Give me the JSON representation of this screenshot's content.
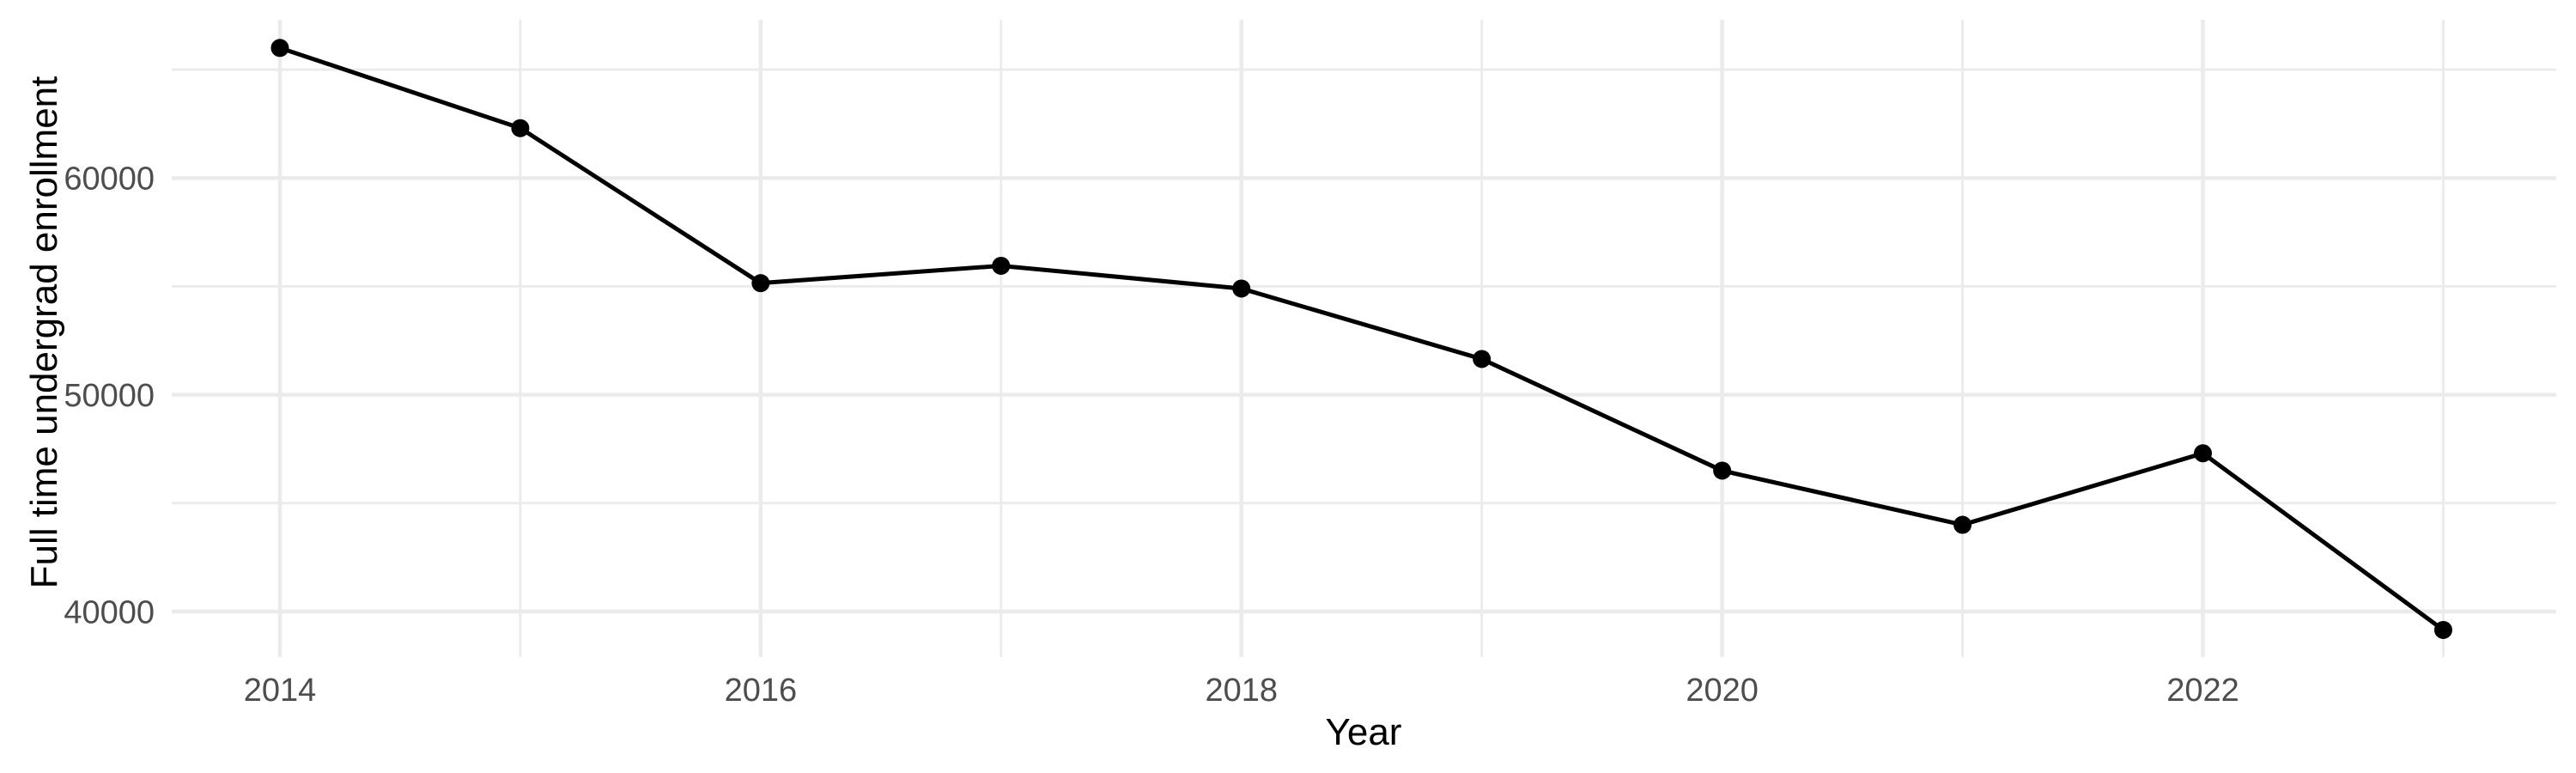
{
  "figure": {
    "background_color": "#FFFFFF",
    "panel_background_color": "#FFFFFF"
  },
  "chart_data": {
    "type": "line",
    "title": "",
    "xlabel": "Year",
    "ylabel": "Full time undergrad enrollment",
    "x": [
      2014,
      2015,
      2016,
      2017,
      2018,
      2019,
      2020,
      2021,
      2022,
      2023
    ],
    "series": [
      {
        "name": "Full time undergrad enrollment",
        "values": [
          66000,
          62300,
          55150,
          55950,
          54900,
          51650,
          46500,
          44000,
          47300,
          39150
        ]
      }
    ],
    "x_ticks_major": [
      2014,
      2016,
      2018,
      2020,
      2022
    ],
    "x_ticks_minor": [
      2015,
      2017,
      2019,
      2021,
      2023
    ],
    "y_ticks_major": [
      40000,
      50000,
      60000
    ],
    "y_ticks_minor": [
      45000,
      55000,
      65000
    ],
    "xlim": [
      2013.55,
      2023.47
    ],
    "ylim": [
      37900,
      67300
    ],
    "grid": true,
    "legend_position": "none",
    "line_color": "#000000",
    "point_color": "#000000",
    "grid_color": "#EBEBEB",
    "tick_label_color": "#4D4D4D",
    "axis_title_color": "#000000"
  }
}
